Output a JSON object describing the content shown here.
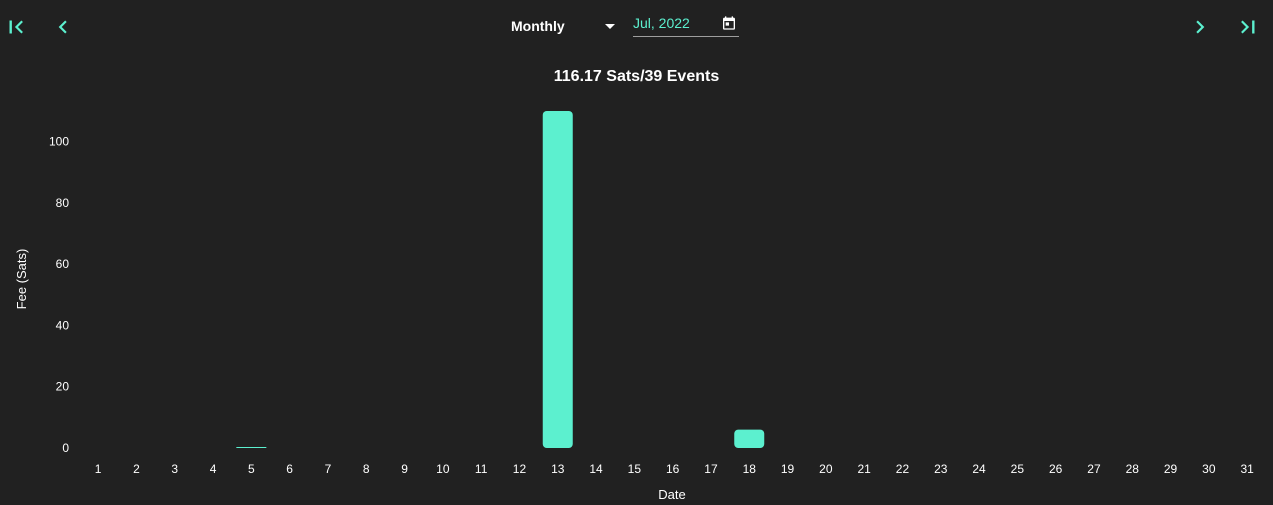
{
  "toolbar": {
    "range_label": "Monthly",
    "date_value": "Jul, 2022"
  },
  "colors": {
    "accent": "#5cf0cf",
    "background": "#212121",
    "text": "#ffffff"
  },
  "icons": {
    "first": "skip-first-icon",
    "prev": "chevron-left-icon",
    "next": "chevron-right-icon",
    "last": "skip-last-icon",
    "dropdown": "caret-down-icon",
    "calendar": "calendar-icon"
  },
  "chart_data": {
    "type": "bar",
    "title": "116.17 Sats/39 Events",
    "xlabel": "Date",
    "ylabel": "Fee (Sats)",
    "ylim": [
      0,
      110
    ],
    "yticks": [
      0,
      20,
      40,
      60,
      80,
      100
    ],
    "categories": [
      "1",
      "2",
      "3",
      "4",
      "5",
      "6",
      "7",
      "8",
      "9",
      "10",
      "11",
      "12",
      "13",
      "14",
      "15",
      "16",
      "17",
      "18",
      "19",
      "20",
      "21",
      "22",
      "23",
      "24",
      "25",
      "26",
      "27",
      "28",
      "29",
      "30",
      "31"
    ],
    "values": [
      0,
      0,
      0,
      0,
      0.17,
      0,
      0,
      0,
      0,
      0,
      0,
      0,
      110,
      0,
      0,
      0,
      0,
      6,
      0,
      0,
      0,
      0,
      0,
      0,
      0,
      0,
      0,
      0,
      0,
      0,
      0
    ],
    "grid": false,
    "legend": "none"
  }
}
